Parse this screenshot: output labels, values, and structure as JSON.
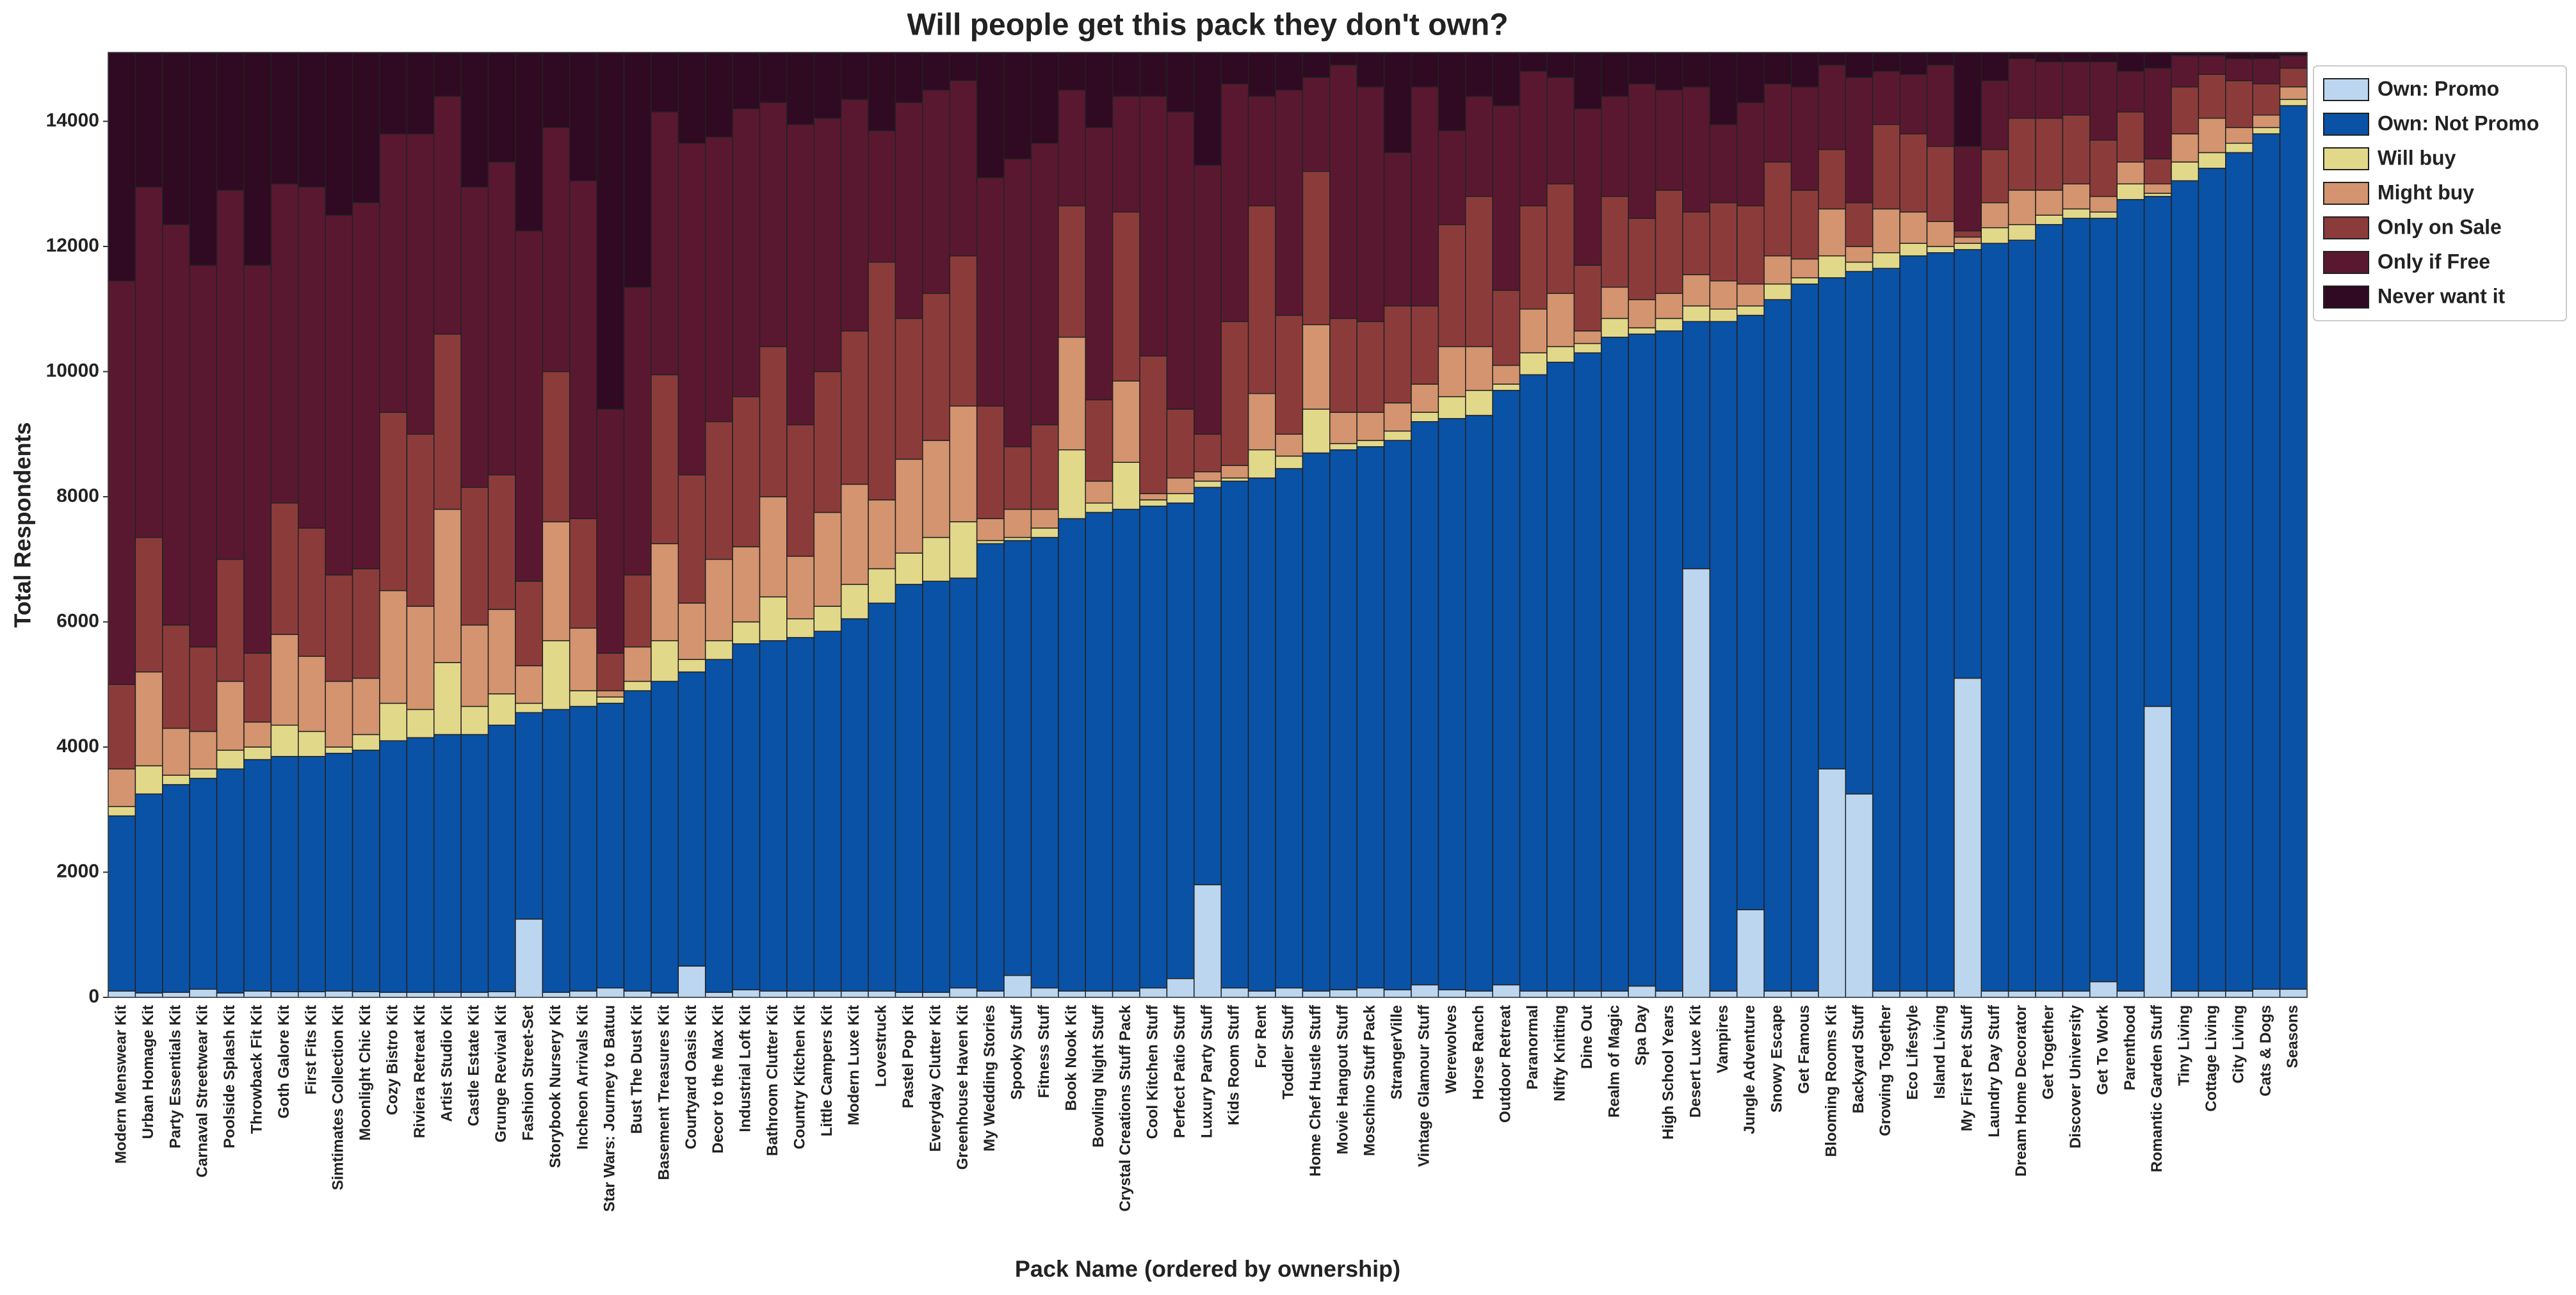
{
  "chart_data": {
    "type": "stacked_bar",
    "title": "Will people get this pack they don't own?",
    "x_label": "Pack Name (ordered by ownership)",
    "y_label": "Total Respondents",
    "ylim": [
      0,
      15100
    ],
    "yticks": [
      0,
      2000,
      4000,
      6000,
      8000,
      10000,
      12000,
      14000
    ],
    "grid": false,
    "legend_position": "outside-upper-right",
    "categories": [
      "Modern Menswear Kit",
      "Urban Homage Kit",
      "Party Essentials Kit",
      "Carnaval Streetwear Kit",
      "Poolside Splash Kit",
      "Throwback Fit Kit",
      "Goth Galore Kit",
      "First Fits Kit",
      "Simtimates Collection Kit",
      "Moonlight Chic Kit",
      "Cozy Bistro Kit",
      "Riviera Retreat Kit",
      "Artist Studio Kit",
      "Castle Estate Kit",
      "Grunge Revival Kit",
      "Fashion Street-Set",
      "Storybook Nursery Kit",
      "Incheon Arrivals Kit",
      "Star Wars: Journey to Batuu",
      "Bust The Dust Kit",
      "Basement Treasures Kit",
      "Courtyard Oasis Kit",
      "Decor to the Max Kit",
      "Industrial Loft Kit",
      "Bathroom Clutter Kit",
      "Country Kitchen Kit",
      "Little Campers Kit",
      "Modern Luxe Kit",
      "Lovestruck",
      "Pastel Pop Kit",
      "Everyday Clutter Kit",
      "Greenhouse Haven Kit",
      "My Wedding Stories",
      "Spooky Stuff",
      "Fitness Stuff",
      "Book Nook Kit",
      "Bowling Night Stuff",
      "Crystal Creations Stuff Pack",
      "Cool Kitchen Stuff",
      "Perfect Patio Stuff",
      "Luxury Party Stuff",
      "Kids Room Stuff",
      "For Rent",
      "Toddler Stuff",
      "Home Chef Hustle Stuff",
      "Movie Hangout Stuff",
      "Moschino Stuff Pack",
      "StrangerVille",
      "Vintage Glamour Stuff",
      "Werewolves",
      "Horse Ranch",
      "Outdoor Retreat",
      "Paranormal",
      "Nifty Knitting",
      "Dine Out",
      "Realm of Magic",
      "Spa Day",
      "High School Years",
      "Desert Luxe Kit",
      "Vampires",
      "Jungle Adventure",
      "Snowy Escape",
      "Get Famous",
      "Blooming Rooms Kit",
      "Backyard Stuff",
      "Growing Together",
      "Eco Lifestyle",
      "Island Living",
      "My First Pet Stuff",
      "Laundry Day Stuff",
      "Dream Home Decorator",
      "Get Together",
      "Discover University",
      "Get To Work",
      "Parenthood",
      "Romantic Garden Stuff",
      "Tiny Living",
      "Cottage Living",
      "City Living",
      "Cats & Dogs",
      "Seasons"
    ],
    "series": [
      {
        "name": "Own: Promo",
        "color": "#bcd6f0",
        "values": [
          100,
          70,
          80,
          130,
          70,
          100,
          90,
          90,
          100,
          90,
          80,
          80,
          80,
          80,
          90,
          1250,
          80,
          100,
          150,
          100,
          70,
          500,
          80,
          120,
          100,
          100,
          100,
          100,
          100,
          80,
          80,
          150,
          100,
          350,
          150,
          100,
          100,
          100,
          150,
          300,
          1800,
          150,
          100,
          150,
          100,
          120,
          150,
          120,
          200,
          120,
          100,
          200,
          100,
          100,
          100,
          100,
          180,
          100,
          6850,
          100,
          1400,
          100,
          100,
          3650,
          3250,
          100,
          100,
          100,
          5100,
          100,
          100,
          100,
          100,
          250,
          100,
          4650,
          100,
          100,
          100,
          130,
          130
        ]
      },
      {
        "name": "Own: Not Promo",
        "color": "#0a52a5",
        "values": [
          2800,
          3180,
          3320,
          3370,
          3580,
          3700,
          3760,
          3760,
          3800,
          3860,
          4020,
          4070,
          4120,
          4120,
          4260,
          3300,
          4520,
          4550,
          4550,
          4800,
          4980,
          4700,
          5320,
          5530,
          5600,
          5650,
          5750,
          5950,
          6200,
          6520,
          6570,
          6550,
          7150,
          6950,
          7200,
          7550,
          7650,
          7700,
          7700,
          7600,
          6350,
          8100,
          8200,
          8300,
          8600,
          8630,
          8650,
          8780,
          9000,
          9130,
          9200,
          9500,
          9850,
          10050,
          10200,
          10450,
          10420,
          10550,
          3950,
          10700,
          9500,
          11050,
          11300,
          7850,
          8350,
          11550,
          11750,
          11800,
          6850,
          11950,
          12000,
          12250,
          12350,
          12200,
          12650,
          8150,
          12950,
          13150,
          13400,
          13670,
          14120
        ]
      },
      {
        "name": "Will buy",
        "color": "#e2d88a",
        "values": [
          150,
          450,
          150,
          150,
          300,
          200,
          500,
          400,
          100,
          250,
          600,
          450,
          1150,
          450,
          500,
          150,
          1100,
          250,
          100,
          150,
          650,
          200,
          300,
          350,
          700,
          300,
          400,
          550,
          550,
          500,
          700,
          900,
          50,
          50,
          150,
          1100,
          150,
          750,
          100,
          150,
          100,
          50,
          450,
          200,
          700,
          100,
          100,
          150,
          150,
          350,
          400,
          100,
          350,
          250,
          150,
          300,
          100,
          200,
          250,
          200,
          150,
          250,
          100,
          350,
          150,
          250,
          200,
          100,
          100,
          250,
          250,
          150,
          150,
          100,
          250,
          50,
          300,
          250,
          150,
          100,
          100
        ]
      },
      {
        "name": "Might buy",
        "color": "#d3946f",
        "values": [
          600,
          1500,
          750,
          600,
          1100,
          400,
          1450,
          1200,
          1050,
          900,
          1800,
          1650,
          2450,
          1300,
          1350,
          600,
          1900,
          1000,
          100,
          550,
          1550,
          900,
          1300,
          1200,
          1600,
          1000,
          1500,
          1600,
          1100,
          1500,
          1550,
          1850,
          350,
          450,
          300,
          1800,
          350,
          1300,
          100,
          250,
          150,
          200,
          900,
          350,
          1350,
          500,
          450,
          450,
          450,
          800,
          700,
          300,
          700,
          850,
          200,
          500,
          450,
          400,
          500,
          450,
          350,
          450,
          300,
          750,
          250,
          700,
          500,
          400,
          100,
          400,
          550,
          400,
          400,
          250,
          350,
          150,
          450,
          550,
          250,
          200,
          200
        ]
      },
      {
        "name": "Only on Sale",
        "color": "#8c3b3b",
        "values": [
          1350,
          2150,
          1650,
          1350,
          1950,
          1100,
          2100,
          2050,
          1700,
          1750,
          2850,
          2750,
          2800,
          2200,
          2150,
          1350,
          2400,
          1750,
          600,
          1150,
          2700,
          2050,
          2200,
          2400,
          2400,
          2100,
          2250,
          2450,
          3800,
          2250,
          2350,
          2400,
          1800,
          1000,
          1350,
          2100,
          1300,
          2700,
          2200,
          1100,
          600,
          2300,
          3000,
          1900,
          2450,
          1500,
          1450,
          1550,
          1250,
          1950,
          2400,
          1200,
          1650,
          1750,
          1050,
          1450,
          1300,
          1650,
          1000,
          1250,
          1250,
          1500,
          1100,
          950,
          700,
          1350,
          1250,
          1200,
          100,
          850,
          1150,
          1150,
          1100,
          900,
          800,
          400,
          750,
          700,
          750,
          500,
          300
        ]
      },
      {
        "name": "Only if Free",
        "color": "#5a1830",
        "values": [
          6450,
          5600,
          6400,
          6100,
          5900,
          6200,
          5100,
          5450,
          5750,
          5850,
          4450,
          4800,
          3800,
          4800,
          5000,
          5600,
          3900,
          5400,
          3900,
          4600,
          4200,
          5300,
          4550,
          4600,
          3900,
          4800,
          4050,
          3700,
          2100,
          3450,
          3250,
          2800,
          3650,
          4600,
          4500,
          1850,
          4350,
          1850,
          4150,
          4750,
          4300,
          3800,
          1750,
          3600,
          1500,
          4050,
          3750,
          2450,
          3500,
          1500,
          1600,
          2950,
          2150,
          1700,
          2500,
          1600,
          2150,
          1600,
          2000,
          1250,
          1650,
          1250,
          1650,
          1350,
          2000,
          850,
          950,
          1300,
          1350,
          1100,
          950,
          900,
          850,
          1250,
          650,
          1450,
          500,
          300,
          350,
          400,
          200
        ]
      },
      {
        "name": "Never want it",
        "color": "#2f0a22",
        "values": [
          3650,
          2150,
          2750,
          3400,
          2200,
          3400,
          2100,
          2150,
          2600,
          2400,
          1300,
          1300,
          700,
          2150,
          1750,
          2850,
          1200,
          2050,
          5700,
          3750,
          950,
          1450,
          1350,
          900,
          800,
          1150,
          1050,
          750,
          1250,
          800,
          600,
          450,
          2000,
          1700,
          1450,
          600,
          1200,
          700,
          700,
          950,
          1800,
          500,
          700,
          600,
          400,
          200,
          550,
          1600,
          550,
          1250,
          700,
          850,
          300,
          400,
          900,
          700,
          500,
          600,
          550,
          1150,
          800,
          500,
          550,
          200,
          400,
          300,
          350,
          200,
          1500,
          450,
          100,
          150,
          150,
          150,
          300,
          250,
          50,
          50,
          100,
          100,
          50
        ]
      }
    ]
  }
}
